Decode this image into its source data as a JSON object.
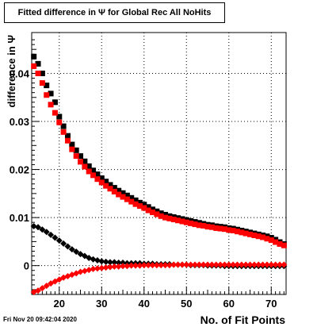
{
  "title": "Fitted difference in  Ψ  for Global Rec All NoHits",
  "footer": "Fri Nov 20 09:42:04 2020",
  "chart_data": {
    "type": "scatter",
    "title": "Fitted difference in  Ψ  for Global Rec All NoHits",
    "xlabel": "No. of Fit Points",
    "ylabel": "difference in  Ψ",
    "xlim": [
      13.5,
      73.5
    ],
    "ylim": [
      -0.006,
      0.0485
    ],
    "x_ticks": [
      20,
      30,
      40,
      50,
      60,
      70
    ],
    "x_tick_labels": [
      "20",
      "30",
      "40",
      "50",
      "60",
      "70"
    ],
    "y_ticks": [
      0,
      0.01,
      0.02,
      0.03,
      0.04
    ],
    "y_tick_labels": [
      "0",
      "0.01",
      "0.02",
      "0.03",
      "0.04"
    ],
    "grid": true,
    "colors": {
      "black_series": "#000000",
      "red_series": "#ff0000"
    },
    "x_start": 14,
    "x_end": 73,
    "series": [
      {
        "marker": "square",
        "color": "#000000",
        "y": [
          0.0435,
          0.042,
          0.04,
          0.0375,
          0.0358,
          0.034,
          0.031,
          0.029,
          0.027,
          0.0252,
          0.024,
          0.0228,
          0.0217,
          0.0207,
          0.0198,
          0.019,
          0.0182,
          0.0175,
          0.0168,
          0.0162,
          0.0156,
          0.0151,
          0.0146,
          0.0141,
          0.0136,
          0.0131,
          0.0127,
          0.0122,
          0.0117,
          0.0113,
          0.0109,
          0.0106,
          0.0103,
          0.0101,
          0.0099,
          0.0097,
          0.0095,
          0.0093,
          0.0091,
          0.0089,
          0.0087,
          0.0085,
          0.0084,
          0.0082,
          0.0081,
          0.008,
          0.0078,
          0.0077,
          0.0075,
          0.0073,
          0.0071,
          0.0069,
          0.0067,
          0.0065,
          0.0063,
          0.0061,
          0.0058,
          0.0054,
          0.0049,
          0.0045
        ]
      },
      {
        "marker": "square",
        "color": "#ff0000",
        "y": [
          0.0415,
          0.04,
          0.038,
          0.0355,
          0.0335,
          0.0318,
          0.0298,
          0.0278,
          0.026,
          0.0242,
          0.0228,
          0.0216,
          0.0206,
          0.0196,
          0.0188,
          0.018,
          0.0173,
          0.0166,
          0.016,
          0.0154,
          0.0148,
          0.0143,
          0.0138,
          0.0133,
          0.0128,
          0.0124,
          0.012,
          0.0115,
          0.0111,
          0.0107,
          0.0103,
          0.01,
          0.0098,
          0.0096,
          0.0094,
          0.0092,
          0.009,
          0.0088,
          0.0086,
          0.0084,
          0.0083,
          0.0081,
          0.008,
          0.0078,
          0.0077,
          0.0076,
          0.0074,
          0.0073,
          0.0071,
          0.0069,
          0.0067,
          0.0065,
          0.0063,
          0.0061,
          0.0059,
          0.0056,
          0.0053,
          0.0049,
          0.0045,
          0.0042
        ]
      },
      {
        "marker": "diamond",
        "color": "#000000",
        "y": [
          0.0082,
          0.008,
          0.0075,
          0.007,
          0.0064,
          0.0058,
          0.0052,
          0.0046,
          0.004,
          0.0034,
          0.0029,
          0.0024,
          0.002,
          0.0016,
          0.0013,
          0.0011,
          0.0009,
          0.0008,
          0.0007,
          0.0007,
          0.0006,
          0.0006,
          0.0005,
          0.0005,
          0.0005,
          0.0005,
          0.0004,
          0.0004,
          0.0004,
          0.0003,
          0.0003,
          0.0003,
          0.0003,
          0.0002,
          0.0002,
          0.0002,
          0.0002,
          0.0001,
          0.0001,
          0.0001,
          0.0001,
          0.0,
          0.0,
          0.0,
          0.0,
          -0.0001,
          -0.0001,
          -0.0001,
          -0.0001,
          -0.0001,
          -0.0001,
          -0.0001,
          -0.0001,
          -0.0001,
          -0.0001,
          -0.0001,
          -0.0001,
          -0.0001,
          -0.0001,
          -0.0001
        ]
      },
      {
        "marker": "diamond",
        "color": "#ff0000",
        "y": [
          -0.0055,
          -0.0052,
          -0.0047,
          -0.0042,
          -0.0037,
          -0.0033,
          -0.0029,
          -0.0025,
          -0.0022,
          -0.0019,
          -0.0016,
          -0.0013,
          -0.0011,
          -0.0009,
          -0.0007,
          -0.0006,
          -0.0005,
          -0.0004,
          -0.0003,
          -0.0002,
          -0.0002,
          -0.0001,
          -0.0001,
          0.0,
          0.0,
          0.0,
          0.0001,
          0.0001,
          0.0001,
          0.0001,
          0.0001,
          0.0001,
          0.0001,
          0.0002,
          0.0002,
          0.0002,
          0.0002,
          0.0002,
          0.0002,
          0.0002,
          0.0002,
          0.0002,
          0.0002,
          0.0002,
          0.0002,
          0.0002,
          0.0002,
          0.0002,
          0.0002,
          0.0002,
          0.0002,
          0.0002,
          0.0002,
          0.0002,
          0.0002,
          0.0002,
          0.0002,
          0.0002,
          0.0002,
          0.0002
        ]
      }
    ]
  }
}
